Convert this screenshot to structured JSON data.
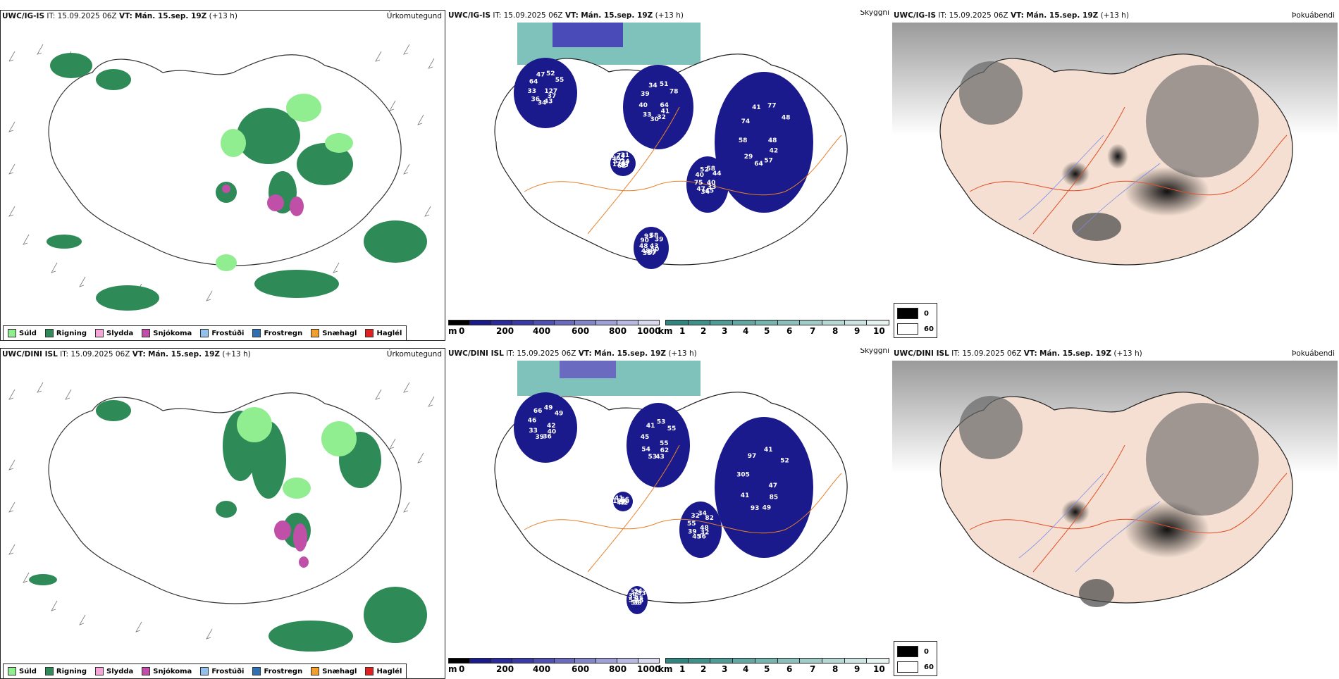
{
  "panels": [
    {
      "id": "r1c1",
      "model": "UWC/IG-IS",
      "it_label": "IT:",
      "it": "15.09.2025 06Z",
      "vt_label": "VT:",
      "vt": "Mán. 15.sep. 19Z",
      "lead": "(+13 h)",
      "title": "Úrkomutegund"
    },
    {
      "id": "r1c2",
      "model": "UWC/IG-IS",
      "it_label": "IT:",
      "it": "15.09.2025 06Z",
      "vt_label": "VT:",
      "vt": "Mán. 15.sep. 19Z",
      "lead": "(+13 h)",
      "title": "Skyggni"
    },
    {
      "id": "r1c3",
      "model": "UWC/IG-IS",
      "it_label": "IT:",
      "it": "15.09.2025 06Z",
      "vt_label": "VT:",
      "vt": "Mán. 15.sep. 19Z",
      "lead": "(+13 h)",
      "title": "Þokuábendi"
    },
    {
      "id": "r2c1",
      "model": "UWC/DINI ISL",
      "it_label": "IT:",
      "it": "15.09.2025 06Z",
      "vt_label": "VT:",
      "vt": "Mán. 15.sep. 19Z",
      "lead": "(+13 h)",
      "title": "Úrkomutegund"
    },
    {
      "id": "r2c2",
      "model": "UWC/DINI ISL",
      "it_label": "IT:",
      "it": "15.09.2025 06Z",
      "vt_label": "VT:",
      "vt": "Mán. 15.sep. 19Z",
      "lead": "(+13 h)",
      "title": "Skyggni"
    },
    {
      "id": "r2c3",
      "model": "UWC/DINI ISL",
      "it_label": "IT:",
      "it": "15.09.2025 06Z",
      "vt_label": "VT:",
      "vt": "Mán. 15.sep. 19Z",
      "lead": "(+13 h)",
      "title": "Þokuábendi"
    }
  ],
  "precip_legend": [
    {
      "label": "Súld",
      "color": "#90ee90"
    },
    {
      "label": "Rigning",
      "color": "#2e8b57"
    },
    {
      "label": "Slydda",
      "color": "#f4a6d7"
    },
    {
      "label": "Snjókoma",
      "color": "#c04fa8"
    },
    {
      "label": "Frostúði",
      "color": "#8fc1ec"
    },
    {
      "label": "Frostregn",
      "color": "#2f6fb4"
    },
    {
      "label": "Snæhagl",
      "color": "#f0a030"
    },
    {
      "label": "Haglél",
      "color": "#e02020"
    }
  ],
  "ceiling_bar": {
    "unit": "m",
    "labels": [
      "0",
      "200",
      "400",
      "600",
      "800",
      "1000"
    ]
  },
  "visibility_bar": {
    "unit": "km",
    "labels": [
      "1",
      "2",
      "3",
      "4",
      "5",
      "6",
      "7",
      "8",
      "9",
      "10"
    ]
  },
  "fog_legend": {
    "dark": "0",
    "light": "60"
  },
  "ceiling_labels_row1": [
    "127",
    "37",
    "43",
    "34",
    "36",
    "33",
    "64",
    "47",
    "52",
    "55",
    "64",
    "41",
    "32",
    "30",
    "33",
    "40",
    "39",
    "34",
    "51",
    "78",
    "48",
    "42",
    "57",
    "64",
    "29",
    "58",
    "74",
    "41",
    "77",
    "48",
    "40",
    "33",
    "45",
    "34",
    "47",
    "75",
    "40",
    "52",
    "58",
    "44",
    "43",
    "50",
    "57",
    "387",
    "48",
    "48",
    "90",
    "93",
    "58",
    "39",
    "34",
    "47",
    "33",
    "62",
    "122",
    "57",
    "962",
    "74",
    "31"
  ],
  "ceiling_labels_row2": [
    "42",
    "40",
    "36",
    "39",
    "33",
    "46",
    "66",
    "49",
    "49",
    "55",
    "62",
    "43",
    "53",
    "54",
    "45",
    "41",
    "53",
    "55",
    "47",
    "85",
    "49",
    "93",
    "41",
    "305",
    "97",
    "41",
    "52",
    "48",
    "32",
    "36",
    "45",
    "39",
    "55",
    "32",
    "34",
    "82",
    "45",
    "35",
    "33",
    "58",
    "54",
    "39",
    "32",
    "34",
    "33",
    "56",
    "40",
    "42",
    "47",
    "103",
    "41"
  ]
}
